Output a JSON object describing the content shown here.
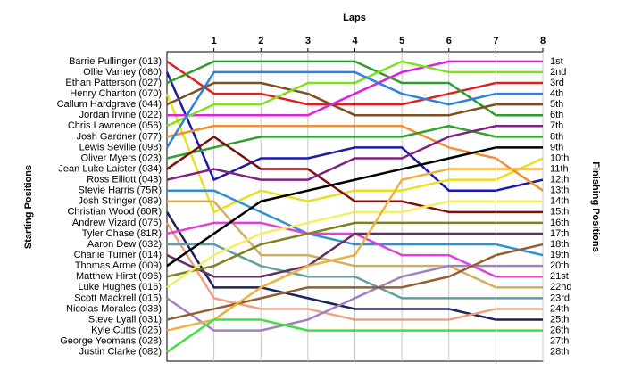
{
  "chart_data": {
    "type": "lap",
    "title": "Laps",
    "y_label": "Starting Positions",
    "y2_label": "Finishing Positions",
    "x": [
      0,
      1,
      2,
      3,
      4,
      5,
      6,
      7,
      8
    ],
    "xlim": [
      0,
      8
    ],
    "xticks": [
      1,
      2,
      3,
      4,
      5,
      6,
      7,
      8
    ],
    "ylim": [
      0.1,
      28.85
    ],
    "y_inverted": true,
    "grid": true,
    "finishing_labels": [
      "1st",
      "2nd",
      "3rd",
      "4th",
      "5th",
      "6th",
      "7th",
      "8th",
      "9th",
      "10th",
      "11th",
      "12th",
      "13th",
      "14th",
      "15th",
      "16th",
      "17th",
      "18th",
      "19th",
      "20th",
      "21st",
      "22nd",
      "23rd",
      "24th",
      "25th",
      "26th",
      "27th",
      "28th"
    ],
    "series": [
      {
        "name": "Barrie Pullinger (013)",
        "color": "#e02020",
        "values": [
          1,
          4,
          4,
          5,
          5,
          5,
          4,
          3,
          3
        ]
      },
      {
        "name": "Ollie Varney (080)",
        "color": "#1a1aa8",
        "values": [
          2,
          12,
          10,
          10,
          9,
          9,
          13,
          13,
          12
        ]
      },
      {
        "name": "Ethan Patterson (027)",
        "color": "#2a9d2a",
        "values": [
          3,
          1,
          1,
          1,
          1,
          3,
          3,
          6,
          6
        ]
      },
      {
        "name": "Henry Charlton (070)",
        "color": "#e8e020",
        "values": [
          4,
          15,
          13,
          14,
          13,
          13,
          12,
          12,
          10
        ]
      },
      {
        "name": "Callum Hardgrave (044)",
        "color": "#7a5020",
        "values": [
          5,
          3,
          3,
          4,
          6,
          6,
          6,
          5,
          5
        ]
      },
      {
        "name": "Jordan Irvine (022)",
        "color": "#e020e0",
        "values": [
          6,
          6,
          6,
          6,
          4,
          2,
          1,
          1,
          1
        ]
      },
      {
        "name": "Chris Lawrence (056)",
        "color": "#80e020",
        "values": [
          7,
          5,
          5,
          3,
          3,
          1,
          2,
          2,
          2
        ]
      },
      {
        "name": "Josh Gardner (077)",
        "color": "#f09030",
        "values": [
          8,
          7,
          7,
          7,
          7,
          7,
          9,
          10,
          13
        ]
      },
      {
        "name": "Lewis Seville (098)",
        "color": "#3080e0",
        "values": [
          9,
          2,
          2,
          2,
          2,
          4,
          5,
          4,
          4
        ]
      },
      {
        "name": "Oliver Myers (023)",
        "color": "#30a030",
        "values": [
          10,
          9,
          8,
          8,
          8,
          8,
          7,
          8,
          8
        ]
      },
      {
        "name": "Jean Luke Laister (034)",
        "color": "#801010",
        "values": [
          11,
          8,
          11,
          11,
          14,
          14,
          15,
          15,
          15
        ]
      },
      {
        "name": "Ross Elliott (043)",
        "color": "#802080",
        "values": [
          12,
          11,
          12,
          12,
          10,
          10,
          8,
          7,
          7
        ]
      },
      {
        "name": "Stevie Harris (75R)",
        "color": "#3090d0",
        "values": [
          13,
          13,
          15,
          17,
          18,
          18,
          18,
          18,
          19
        ]
      },
      {
        "name": "Josh Stringer (089)",
        "color": "#d0b060",
        "values": [
          14,
          14,
          19,
          19,
          20,
          20,
          20,
          22,
          22
        ]
      },
      {
        "name": "Christian Wood (60R)",
        "color": "#202060",
        "values": [
          15,
          22,
          22,
          23,
          24,
          24,
          24,
          25,
          25
        ]
      },
      {
        "name": "Andrew Vizard (076)",
        "color": "#f0a080",
        "values": [
          16,
          23,
          24,
          24,
          25,
          25,
          25,
          24,
          24
        ]
      },
      {
        "name": "Tyler Chase (81R)",
        "color": "#e040e0",
        "values": [
          17,
          16,
          16,
          17,
          17,
          19,
          19,
          21,
          21
        ]
      },
      {
        "name": "Aaron Dew (032)",
        "color": "#60a0a0",
        "values": [
          18,
          18,
          20,
          21,
          21,
          23,
          23,
          23,
          23
        ]
      },
      {
        "name": "Charlie Turner (014)",
        "color": "#603060",
        "values": [
          19,
          21,
          21,
          20,
          17,
          17,
          17,
          17,
          17
        ]
      },
      {
        "name": "Thomas Arme (009)",
        "color": "#000000",
        "values": [
          20,
          17,
          14,
          13,
          12,
          11,
          10,
          9,
          9
        ]
      },
      {
        "name": "Matthew Hirst (096)",
        "color": "#808020",
        "values": [
          21,
          20,
          18,
          17,
          16,
          16,
          16,
          16,
          16
        ]
      },
      {
        "name": "Luke Hughes (016)",
        "color": "#f0f060",
        "values": [
          22,
          19,
          17,
          16,
          15,
          15,
          14,
          14,
          14
        ]
      },
      {
        "name": "Scott Mackrell (015)",
        "color": "#a080c0",
        "values": [
          23,
          26,
          26,
          25,
          23,
          21,
          20,
          20,
          20
        ]
      },
      {
        "name": "Nicolas Morales (038)",
        "color": "#a0a0a0",
        "values": [
          24,
          null,
          null,
          null,
          null,
          null,
          null,
          null,
          null
        ]
      },
      {
        "name": "Steve Lyall (031)",
        "color": "#906030",
        "values": [
          25,
          24,
          23,
          22,
          22,
          22,
          21,
          19,
          18
        ]
      },
      {
        "name": "Kyle Cutts (025)",
        "color": "#f0b040",
        "values": [
          26,
          25,
          22,
          20,
          19,
          12,
          11,
          11,
          11
        ]
      },
      {
        "name": "George Yeomans (028)",
        "color": "#b0b0b0",
        "values": [
          27,
          null,
          null,
          null,
          null,
          null,
          null,
          null,
          null
        ]
      },
      {
        "name": "Justin Clarke (082)",
        "color": "#40e040",
        "values": [
          28,
          25,
          25,
          26,
          26,
          26,
          26,
          26,
          26
        ]
      }
    ]
  }
}
